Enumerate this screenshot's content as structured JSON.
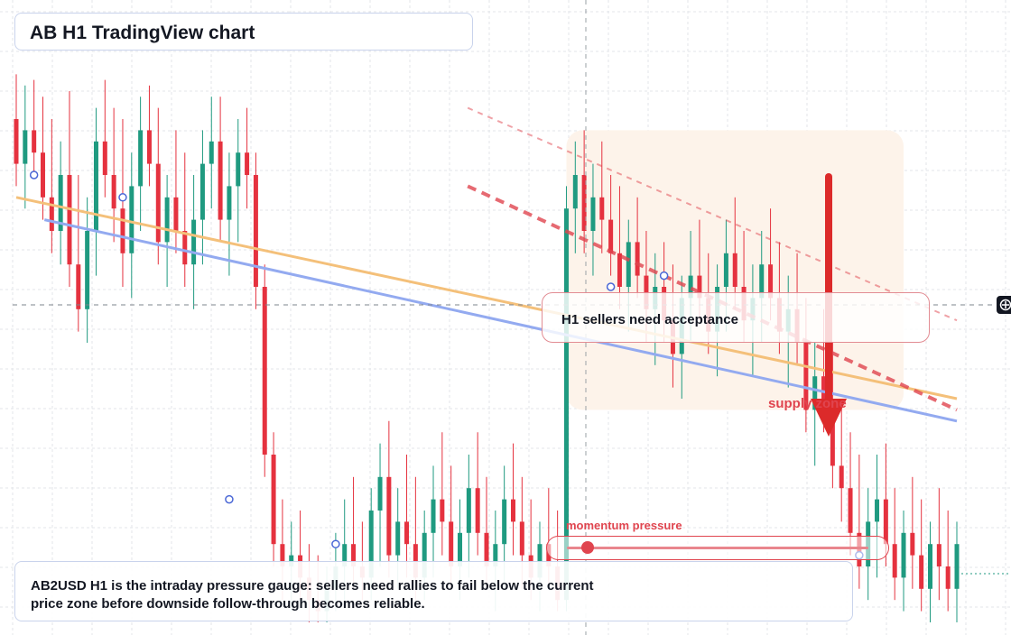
{
  "title": "AB H1 TradingView chart",
  "callout": {
    "text": "H1 sellers need acceptance"
  },
  "zone_label": "supply zone",
  "momentum": {
    "label": "momentum pressure",
    "level": 0.07
  },
  "footer": {
    "text": "AB2USD H1 is the intraday pressure gauge: sellers need rallies to fail below the current price zone before downside follow-through becomes reliable."
  },
  "icons": {
    "crosshair": "crosshair-plus-icon",
    "arrow": "down-arrow-icon"
  },
  "colors": {
    "up": "#1f9a80",
    "down": "#e5323f",
    "ma_fast": "#f4c07a",
    "ma_slow": "#93aaf0",
    "trend": "#e0454f",
    "arrow": "#dc2a2a",
    "zone": "#fdf3ea"
  },
  "chart_data": {
    "type": "candlestick",
    "title": "AB H1 TradingView chart",
    "xlabel": "",
    "ylabel": "",
    "ylim": [
      0,
      100
    ],
    "grid": true,
    "candles": [
      {
        "o": 90,
        "h": 98,
        "l": 78,
        "c": 82
      },
      {
        "o": 82,
        "h": 96,
        "l": 74,
        "c": 88
      },
      {
        "o": 88,
        "h": 97,
        "l": 80,
        "c": 84
      },
      {
        "o": 84,
        "h": 94,
        "l": 72,
        "c": 76
      },
      {
        "o": 76,
        "h": 90,
        "l": 66,
        "c": 70
      },
      {
        "o": 70,
        "h": 86,
        "l": 64,
        "c": 80
      },
      {
        "o": 80,
        "h": 95,
        "l": 60,
        "c": 64
      },
      {
        "o": 64,
        "h": 80,
        "l": 52,
        "c": 56
      },
      {
        "o": 56,
        "h": 76,
        "l": 50,
        "c": 70
      },
      {
        "o": 70,
        "h": 92,
        "l": 62,
        "c": 86
      },
      {
        "o": 86,
        "h": 97,
        "l": 76,
        "c": 80
      },
      {
        "o": 80,
        "h": 92,
        "l": 68,
        "c": 74
      },
      {
        "o": 74,
        "h": 90,
        "l": 60,
        "c": 66
      },
      {
        "o": 66,
        "h": 84,
        "l": 58,
        "c": 78
      },
      {
        "o": 78,
        "h": 94,
        "l": 70,
        "c": 88
      },
      {
        "o": 88,
        "h": 96,
        "l": 78,
        "c": 82
      },
      {
        "o": 82,
        "h": 92,
        "l": 64,
        "c": 68
      },
      {
        "o": 68,
        "h": 80,
        "l": 60,
        "c": 76
      },
      {
        "o": 76,
        "h": 88,
        "l": 66,
        "c": 70
      },
      {
        "o": 70,
        "h": 84,
        "l": 60,
        "c": 64
      },
      {
        "o": 64,
        "h": 80,
        "l": 56,
        "c": 72
      },
      {
        "o": 72,
        "h": 88,
        "l": 64,
        "c": 82
      },
      {
        "o": 82,
        "h": 94,
        "l": 74,
        "c": 86
      },
      {
        "o": 86,
        "h": 94,
        "l": 68,
        "c": 72
      },
      {
        "o": 72,
        "h": 84,
        "l": 62,
        "c": 78
      },
      {
        "o": 78,
        "h": 90,
        "l": 68,
        "c": 84
      },
      {
        "o": 84,
        "h": 92,
        "l": 74,
        "c": 80
      },
      {
        "o": 80,
        "h": 84,
        "l": 56,
        "c": 60
      },
      {
        "o": 60,
        "h": 64,
        "l": 26,
        "c": 30
      },
      {
        "o": 30,
        "h": 34,
        "l": 10,
        "c": 14
      },
      {
        "o": 14,
        "h": 22,
        "l": 4,
        "c": 10
      },
      {
        "o": 10,
        "h": 18,
        "l": 2,
        "c": 12
      },
      {
        "o": 12,
        "h": 20,
        "l": 4,
        "c": 8
      },
      {
        "o": 8,
        "h": 14,
        "l": 0,
        "c": 4
      },
      {
        "o": 4,
        "h": 12,
        "l": 0,
        "c": 2
      },
      {
        "o": 2,
        "h": 10,
        "l": 0,
        "c": 6
      },
      {
        "o": 6,
        "h": 16,
        "l": 2,
        "c": 10
      },
      {
        "o": 10,
        "h": 22,
        "l": 4,
        "c": 14
      },
      {
        "o": 14,
        "h": 26,
        "l": 6,
        "c": 10
      },
      {
        "o": 10,
        "h": 18,
        "l": 4,
        "c": 8
      },
      {
        "o": 8,
        "h": 24,
        "l": 4,
        "c": 20
      },
      {
        "o": 20,
        "h": 32,
        "l": 10,
        "c": 26
      },
      {
        "o": 26,
        "h": 36,
        "l": 8,
        "c": 12
      },
      {
        "o": 12,
        "h": 24,
        "l": 6,
        "c": 18
      },
      {
        "o": 18,
        "h": 30,
        "l": 8,
        "c": 14
      },
      {
        "o": 14,
        "h": 26,
        "l": 4,
        "c": 8
      },
      {
        "o": 8,
        "h": 20,
        "l": 4,
        "c": 16
      },
      {
        "o": 16,
        "h": 28,
        "l": 8,
        "c": 22
      },
      {
        "o": 22,
        "h": 34,
        "l": 12,
        "c": 18
      },
      {
        "o": 18,
        "h": 28,
        "l": 6,
        "c": 10
      },
      {
        "o": 10,
        "h": 22,
        "l": 4,
        "c": 16
      },
      {
        "o": 16,
        "h": 30,
        "l": 8,
        "c": 24
      },
      {
        "o": 24,
        "h": 34,
        "l": 12,
        "c": 16
      },
      {
        "o": 16,
        "h": 26,
        "l": 6,
        "c": 10
      },
      {
        "o": 10,
        "h": 20,
        "l": 2,
        "c": 14
      },
      {
        "o": 14,
        "h": 28,
        "l": 6,
        "c": 22
      },
      {
        "o": 22,
        "h": 32,
        "l": 12,
        "c": 18
      },
      {
        "o": 18,
        "h": 26,
        "l": 6,
        "c": 12
      },
      {
        "o": 12,
        "h": 22,
        "l": 4,
        "c": 8
      },
      {
        "o": 8,
        "h": 18,
        "l": 2,
        "c": 14
      },
      {
        "o": 14,
        "h": 24,
        "l": 6,
        "c": 10
      },
      {
        "o": 10,
        "h": 20,
        "l": 2,
        "c": 4
      },
      {
        "o": 4,
        "h": 78,
        "l": 2,
        "c": 74
      },
      {
        "o": 74,
        "h": 86,
        "l": 66,
        "c": 80
      },
      {
        "o": 80,
        "h": 88,
        "l": 66,
        "c": 70
      },
      {
        "o": 70,
        "h": 82,
        "l": 62,
        "c": 76
      },
      {
        "o": 76,
        "h": 86,
        "l": 66,
        "c": 72
      },
      {
        "o": 72,
        "h": 80,
        "l": 62,
        "c": 66
      },
      {
        "o": 66,
        "h": 78,
        "l": 56,
        "c": 60
      },
      {
        "o": 60,
        "h": 72,
        "l": 52,
        "c": 68
      },
      {
        "o": 68,
        "h": 76,
        "l": 58,
        "c": 62
      },
      {
        "o": 62,
        "h": 70,
        "l": 50,
        "c": 56
      },
      {
        "o": 56,
        "h": 66,
        "l": 46,
        "c": 60
      },
      {
        "o": 60,
        "h": 68,
        "l": 50,
        "c": 54
      },
      {
        "o": 54,
        "h": 64,
        "l": 42,
        "c": 48
      },
      {
        "o": 48,
        "h": 62,
        "l": 40,
        "c": 58
      },
      {
        "o": 58,
        "h": 70,
        "l": 50,
        "c": 62
      },
      {
        "o": 62,
        "h": 72,
        "l": 54,
        "c": 58
      },
      {
        "o": 58,
        "h": 66,
        "l": 48,
        "c": 52
      },
      {
        "o": 52,
        "h": 64,
        "l": 44,
        "c": 60
      },
      {
        "o": 60,
        "h": 72,
        "l": 52,
        "c": 66
      },
      {
        "o": 66,
        "h": 76,
        "l": 56,
        "c": 60
      },
      {
        "o": 60,
        "h": 70,
        "l": 50,
        "c": 54
      },
      {
        "o": 54,
        "h": 64,
        "l": 44,
        "c": 58
      },
      {
        "o": 58,
        "h": 70,
        "l": 50,
        "c": 64
      },
      {
        "o": 64,
        "h": 74,
        "l": 54,
        "c": 58
      },
      {
        "o": 58,
        "h": 68,
        "l": 48,
        "c": 52
      },
      {
        "o": 52,
        "h": 62,
        "l": 42,
        "c": 56
      },
      {
        "o": 56,
        "h": 66,
        "l": 46,
        "c": 50
      },
      {
        "o": 50,
        "h": 58,
        "l": 34,
        "c": 38
      },
      {
        "o": 38,
        "h": 50,
        "l": 28,
        "c": 44
      },
      {
        "o": 44,
        "h": 56,
        "l": 34,
        "c": 40
      },
      {
        "o": 40,
        "h": 50,
        "l": 24,
        "c": 28
      },
      {
        "o": 28,
        "h": 40,
        "l": 18,
        "c": 24
      },
      {
        "o": 24,
        "h": 34,
        "l": 12,
        "c": 16
      },
      {
        "o": 16,
        "h": 30,
        "l": 6,
        "c": 10
      },
      {
        "o": 10,
        "h": 24,
        "l": 4,
        "c": 18
      },
      {
        "o": 18,
        "h": 30,
        "l": 8,
        "c": 22
      },
      {
        "o": 22,
        "h": 32,
        "l": 10,
        "c": 14
      },
      {
        "o": 14,
        "h": 24,
        "l": 4,
        "c": 8
      },
      {
        "o": 8,
        "h": 20,
        "l": 2,
        "c": 16
      },
      {
        "o": 16,
        "h": 26,
        "l": 6,
        "c": 12
      },
      {
        "o": 12,
        "h": 22,
        "l": 2,
        "c": 6
      },
      {
        "o": 6,
        "h": 18,
        "l": 0,
        "c": 14
      },
      {
        "o": 14,
        "h": 24,
        "l": 4,
        "c": 10
      },
      {
        "o": 10,
        "h": 20,
        "l": 2,
        "c": 6
      },
      {
        "o": 6,
        "h": 18,
        "l": 0,
        "c": 14
      }
    ],
    "ma_fast": [
      [
        0,
        76
      ],
      [
        100,
        40
      ]
    ],
    "ma_slow": [
      [
        3,
        72
      ],
      [
        100,
        36
      ]
    ],
    "trendlines": [
      {
        "style": "dashed-thin",
        "from": [
          48,
          92
        ],
        "to": [
          100,
          54
        ]
      },
      {
        "style": "dashed-thick",
        "from": [
          48,
          78
        ],
        "to": [
          100,
          38
        ]
      }
    ],
    "markers": [
      {
        "i": 2,
        "v": 80
      },
      {
        "i": 12,
        "v": 76
      },
      {
        "i": 24,
        "v": 22
      },
      {
        "i": 36,
        "v": 14
      },
      {
        "i": 67,
        "v": 60
      },
      {
        "i": 73,
        "v": 62
      },
      {
        "i": 95,
        "v": 12
      }
    ],
    "supply_zone": {
      "from_index": 62,
      "to_index": 100,
      "y0": 38,
      "y1": 88
    }
  }
}
